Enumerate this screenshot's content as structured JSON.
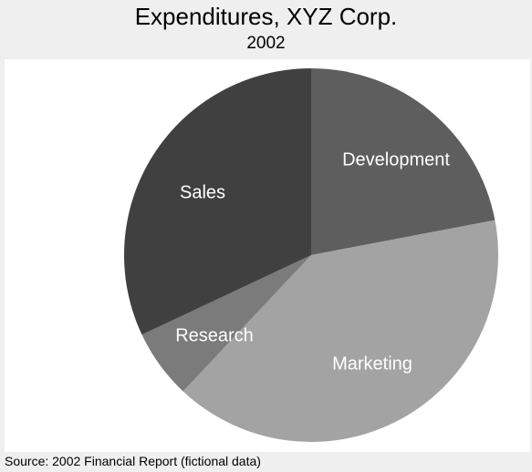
{
  "chart_data": {
    "type": "pie",
    "title": "Expenditures, XYZ Corp.",
    "subtitle": "2002",
    "categories": [
      "Development",
      "Marketing",
      "Research",
      "Sales"
    ],
    "values": [
      22,
      40,
      6,
      32
    ],
    "colors": [
      "#5e5e5e",
      "#a3a3a3",
      "#7b7b7b",
      "#404040"
    ],
    "start_angle_deg": 0,
    "direction": "clockwise-from-12-oclock",
    "legend": "none",
    "source": "Source:  2002 Financial Report (fictional data)"
  }
}
